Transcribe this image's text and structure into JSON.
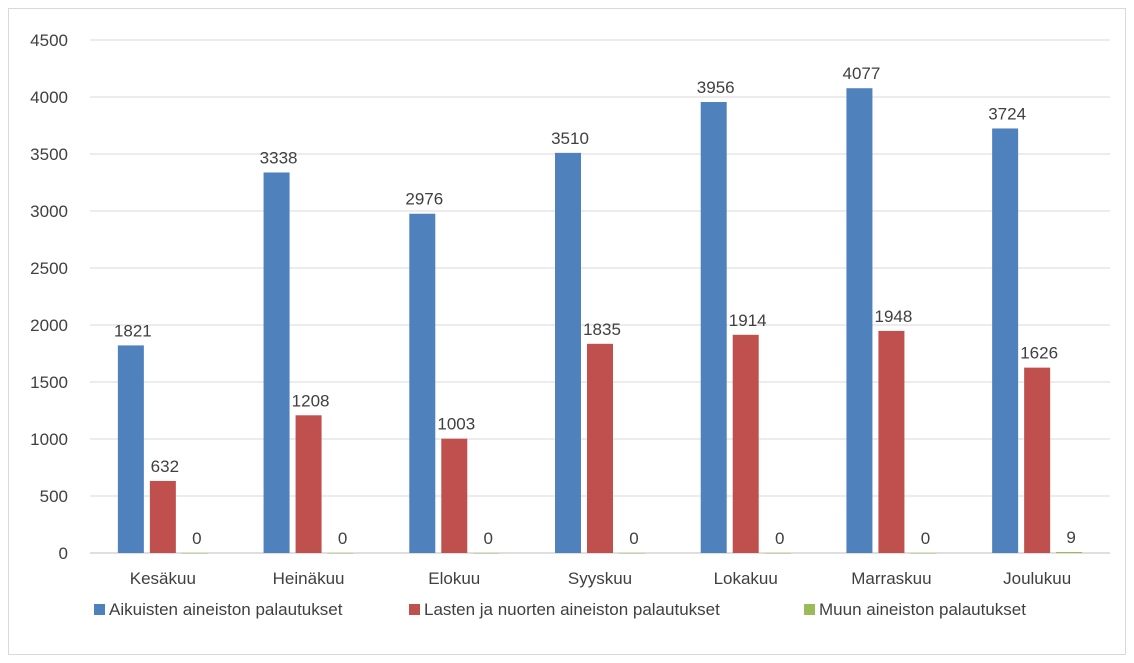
{
  "chart_data": {
    "type": "bar",
    "categories": [
      "Kesäkuu",
      "Heinäkuu",
      "Elokuu",
      "Syyskuu",
      "Lokakuu",
      "Marraskuu",
      "Joulukuu"
    ],
    "series": [
      {
        "name": "Aikuisten aineiston palautukset",
        "color": "#4f81bd",
        "values": [
          1821,
          3338,
          2976,
          3510,
          3956,
          4077,
          3724
        ]
      },
      {
        "name": "Lasten ja nuorten aineiston palautukset",
        "color": "#c0504d",
        "values": [
          632,
          1208,
          1003,
          1835,
          1914,
          1948,
          1626
        ]
      },
      {
        "name": "Muun aineiston palautukset",
        "color": "#9bbb59",
        "values": [
          0,
          0,
          0,
          0,
          0,
          0,
          9
        ]
      }
    ],
    "title": "",
    "xlabel": "",
    "ylabel": "",
    "ylim": [
      0,
      4500
    ],
    "yticks": [
      0,
      500,
      1000,
      1500,
      2000,
      2500,
      3000,
      3500,
      4000,
      4500
    ],
    "grid": true,
    "legend": "bottom",
    "data_labels": true
  }
}
